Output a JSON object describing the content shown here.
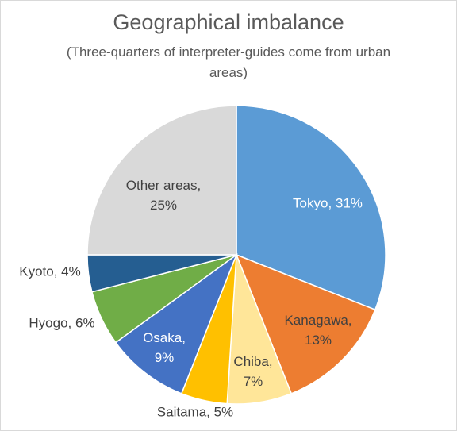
{
  "chart_data": {
    "type": "pie",
    "title": "Geographical imbalance",
    "subtitle": "(Three-quarters  of interpreter-guides  come from urban areas)",
    "values": [
      31,
      13,
      7,
      5,
      9,
      6,
      4,
      25
    ],
    "value_labels": [
      "Tokyo, 31%",
      "Kanagawa, 13%",
      "Chiba, 7%",
      "Saitama, 5%",
      "Osaka, 9%",
      "Hyogo, 6%",
      "Kyoto, 4%",
      "Other areas, 25%"
    ],
    "colors": [
      "#5b9bd5",
      "#ed7d31",
      "#ffe699",
      "#ffc000",
      "#4472c4",
      "#70ad47",
      "#255e91",
      "#d9d9d9"
    ]
  }
}
